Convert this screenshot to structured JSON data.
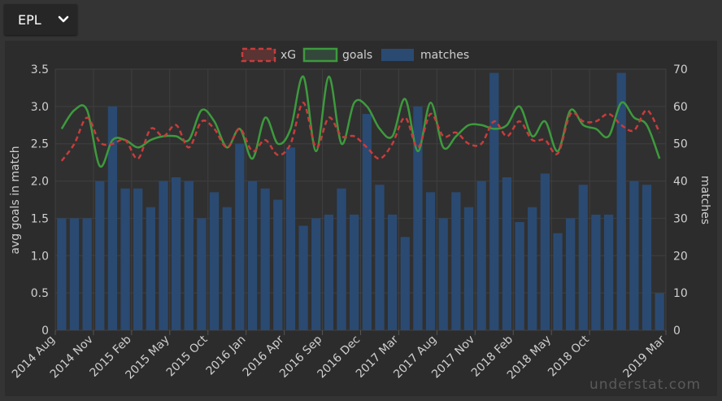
{
  "league_select": {
    "value": "EPL"
  },
  "watermark": "understat.com",
  "chart_data": {
    "type": "bar+line",
    "legend": [
      {
        "name": "xG",
        "color": "#c83c3c",
        "style": "dashed"
      },
      {
        "name": "goals",
        "color": "#3d9a3d",
        "style": "solid"
      },
      {
        "name": "matches",
        "color": "#2a4a72",
        "style": "bar"
      }
    ],
    "ylabel_left": "avg goals in match",
    "ylabel_right": "matches",
    "ylim_left": [
      0,
      3.5
    ],
    "ylim_right": [
      0,
      70
    ],
    "yticks_left": [
      "0",
      "0.5",
      "1.0",
      "1.5",
      "2.0",
      "2.5",
      "3.0",
      "3.5"
    ],
    "yticks_right": [
      "0",
      "10",
      "20",
      "30",
      "40",
      "50",
      "60",
      "70"
    ],
    "xtick_labels": [
      {
        "index": 0,
        "label": "2014 Aug"
      },
      {
        "index": 3,
        "label": "2014 Nov"
      },
      {
        "index": 6,
        "label": "2015 Feb"
      },
      {
        "index": 9,
        "label": "2015 May"
      },
      {
        "index": 12,
        "label": "2015 Oct"
      },
      {
        "index": 15,
        "label": "2016 Jan"
      },
      {
        "index": 18,
        "label": "2016 Apr"
      },
      {
        "index": 21,
        "label": "2016 Sep"
      },
      {
        "index": 24,
        "label": "2016 Dec"
      },
      {
        "index": 27,
        "label": "2017 Mar"
      },
      {
        "index": 30,
        "label": "2017 Aug"
      },
      {
        "index": 33,
        "label": "2017 Nov"
      },
      {
        "index": 36,
        "label": "2018 Feb"
      },
      {
        "index": 39,
        "label": "2018 May"
      },
      {
        "index": 42,
        "label": "2018 Oct"
      },
      {
        "index": 47,
        "label": "2019 Mar"
      }
    ],
    "matches": [
      30,
      30,
      30,
      40,
      60,
      38,
      38,
      33,
      40,
      41,
      40,
      30,
      37,
      33,
      50,
      40,
      38,
      35,
      49,
      28,
      30,
      31,
      38,
      31,
      58,
      39,
      31,
      25,
      60,
      37,
      30,
      37,
      33,
      40,
      69,
      41,
      29,
      33,
      42,
      26,
      30,
      39,
      31,
      31,
      69,
      40,
      39,
      10
    ],
    "xG": [
      2.27,
      2.5,
      2.85,
      2.52,
      2.5,
      2.55,
      2.3,
      2.7,
      2.6,
      2.75,
      2.45,
      2.8,
      2.7,
      2.45,
      2.7,
      2.4,
      2.55,
      2.35,
      2.5,
      3.05,
      2.45,
      2.85,
      2.6,
      2.6,
      2.45,
      2.3,
      2.5,
      2.85,
      2.45,
      2.9,
      2.6,
      2.65,
      2.5,
      2.5,
      2.8,
      2.6,
      2.8,
      2.55,
      2.55,
      2.37,
      2.9,
      2.8,
      2.8,
      2.9,
      2.75,
      2.68,
      2.95,
      2.65
    ],
    "goals": [
      2.7,
      2.95,
      2.95,
      2.2,
      2.55,
      2.55,
      2.45,
      2.55,
      2.6,
      2.6,
      2.55,
      2.95,
      2.8,
      2.45,
      2.7,
      2.3,
      2.85,
      2.5,
      2.7,
      3.4,
      2.4,
      3.4,
      2.5,
      3.05,
      3.0,
      2.7,
      2.6,
      3.1,
      2.4,
      3.05,
      2.45,
      2.6,
      2.75,
      2.75,
      2.7,
      2.75,
      3.0,
      2.6,
      2.8,
      2.4,
      2.95,
      2.75,
      2.7,
      2.6,
      3.05,
      2.85,
      2.75,
      2.3
    ]
  }
}
